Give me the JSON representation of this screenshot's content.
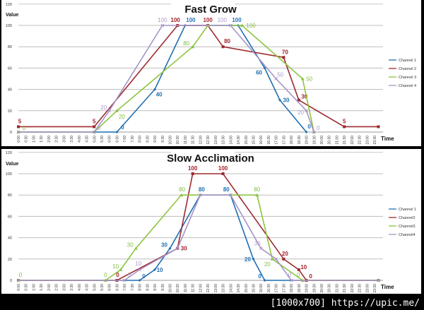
{
  "chart_data": [
    {
      "type": "line",
      "title": "Fast Grow",
      "ylabel": "Value",
      "xlabel": "Time",
      "ylim": [
        0,
        120
      ],
      "yticks": [
        0,
        20,
        40,
        60,
        80,
        100,
        120
      ],
      "xticks": [
        "0:00",
        "0:30",
        "1:00",
        "1:30",
        "2:00",
        "2:30",
        "3:00",
        "3:30",
        "4:00",
        "4:30",
        "5:00",
        "5:30",
        "6:00",
        "6:30",
        "7:00",
        "7:30",
        "8:00",
        "8:30",
        "9:00",
        "9:30",
        "10:00",
        "10:30",
        "11:00",
        "11:30",
        "12:00",
        "12:30",
        "13:00",
        "13:30",
        "14:00",
        "14:30",
        "15:00",
        "15:30",
        "16:00",
        "16:30",
        "17:00",
        "17:30",
        "18:00",
        "18:30",
        "19:00",
        "19:30",
        "20:00",
        "20:30",
        "21:00",
        "21:30",
        "22:00",
        "22:30",
        "23:00",
        "23:30"
      ],
      "grid": true,
      "legend": "right",
      "series": [
        {
          "name": "Channel 1",
          "color": "#1f6fb4",
          "label_color": "#1f6fb4",
          "marker": "diamond",
          "points": [
            [
              0,
              0,
              false
            ],
            [
              6.5,
              0,
              true
            ],
            [
              9,
              40,
              true
            ],
            [
              11,
              100,
              true
            ],
            [
              14.5,
              100,
              true
            ],
            [
              16.25,
              60,
              true
            ],
            [
              17.25,
              30,
              true
            ],
            [
              19,
              0,
              true
            ]
          ]
        },
        {
          "name": "Channel 2",
          "color": "#9e2a2f",
          "label_color": "#a3222a",
          "marker": "square",
          "points": [
            [
              0,
              5,
              true
            ],
            [
              5,
              5,
              true
            ],
            [
              10.5,
              100,
              true
            ],
            [
              12.5,
              100,
              true
            ],
            [
              13.5,
              80,
              true
            ],
            [
              17.5,
              70,
              true
            ],
            [
              18.5,
              30,
              true
            ],
            [
              21.5,
              5,
              true
            ],
            [
              23.75,
              5,
              false
            ]
          ]
        },
        {
          "name": "Channel 3",
          "color": "#8cc43f",
          "label_color": "#7fbf3a",
          "marker": "triangle",
          "points": [
            [
              0,
              0,
              true
            ],
            [
              5,
              0,
              false
            ],
            [
              6.5,
              20,
              true
            ],
            [
              11.5,
              80,
              true
            ],
            [
              12.5,
              100,
              false
            ],
            [
              14.75,
              100,
              true
            ],
            [
              18.75,
              50,
              true
            ],
            [
              19.5,
              0,
              false
            ]
          ]
        },
        {
          "name": "Channel 4",
          "color": "#a793c6",
          "label_color": "#a99ac8",
          "marker": "x",
          "points": [
            [
              0,
              0,
              false
            ],
            [
              5,
              0,
              true
            ],
            [
              6,
              20,
              true
            ],
            [
              9.5,
              100,
              true
            ],
            [
              14,
              100,
              true
            ],
            [
              17,
              50,
              true
            ],
            [
              19,
              20,
              true
            ],
            [
              19.5,
              0,
              true
            ]
          ]
        }
      ]
    },
    {
      "type": "line",
      "title": "Slow Acclimation",
      "ylabel": "Value",
      "xlabel": "Time",
      "ylim": [
        0,
        120
      ],
      "yticks": [
        0,
        20,
        40,
        60,
        80,
        100,
        120
      ],
      "xticks": [
        "0:00",
        "0:30",
        "1:00",
        "1:30",
        "2:00",
        "2:30",
        "3:00",
        "3:30",
        "4:00",
        "4:30",
        "5:00",
        "5:30",
        "6:00",
        "6:30",
        "7:00",
        "7:30",
        "8:00",
        "8:30",
        "9:00",
        "9:30",
        "10:00",
        "10:30",
        "11:00",
        "11:30",
        "12:00",
        "12:30",
        "13:00",
        "13:30",
        "14:00",
        "14:30",
        "15:00",
        "15:30",
        "16:00",
        "16:30",
        "17:00",
        "17:30",
        "18:00",
        "18:30",
        "19:00",
        "19:30",
        "20:00",
        "20:30",
        "21:00",
        "21:30",
        "22:00",
        "22:30",
        "23:00",
        "23:30"
      ],
      "grid": true,
      "legend": "right",
      "series": [
        {
          "name": "Channel 1",
          "color": "#1f6fb4",
          "label_color": "#1f6fb4",
          "marker": "diamond",
          "points": [
            [
              0,
              0,
              false
            ],
            [
              8,
              0,
              true
            ],
            [
              9,
              10,
              true
            ],
            [
              10,
              30,
              true
            ],
            [
              12,
              80,
              true
            ],
            [
              14,
              80,
              true
            ],
            [
              15.5,
              20,
              true
            ],
            [
              16.25,
              0,
              true
            ],
            [
              23.75,
              0,
              false
            ]
          ]
        },
        {
          "name": "Channel2",
          "color": "#9e2a2f",
          "label_color": "#a3222a",
          "marker": "square",
          "points": [
            [
              0,
              0,
              false
            ],
            [
              6.5,
              0,
              true
            ],
            [
              10.5,
              30,
              true
            ],
            [
              11.5,
              100,
              true
            ],
            [
              13.5,
              100,
              true
            ],
            [
              17.5,
              20,
              true
            ],
            [
              18.5,
              10,
              true
            ],
            [
              19,
              0,
              true
            ],
            [
              23.75,
              0,
              false
            ]
          ]
        },
        {
          "name": "Channel3",
          "color": "#8cc43f",
          "label_color": "#7fbf3a",
          "marker": "triangle",
          "points": [
            [
              0,
              0,
              true
            ],
            [
              5.75,
              0,
              true
            ],
            [
              6.75,
              10,
              true
            ],
            [
              7.75,
              30,
              true
            ],
            [
              10.75,
              80,
              true
            ],
            [
              15.75,
              80,
              true
            ],
            [
              16.75,
              20,
              true
            ],
            [
              18.75,
              0,
              true
            ],
            [
              23.75,
              0,
              false
            ]
          ]
        },
        {
          "name": "Channel4",
          "color": "#a793c6",
          "label_color": "#a99ac8",
          "marker": "x",
          "points": [
            [
              0,
              0,
              false
            ],
            [
              7,
              0,
              true
            ],
            [
              8,
              10,
              true
            ],
            [
              10.5,
              30,
              false
            ],
            [
              12,
              80,
              false
            ],
            [
              14,
              80,
              false
            ],
            [
              16,
              30,
              true
            ],
            [
              17,
              20,
              false
            ],
            [
              18,
              0,
              true
            ],
            [
              23.75,
              0,
              false
            ]
          ]
        }
      ]
    }
  ],
  "watermark": "[1000x700] https://upic.me/"
}
